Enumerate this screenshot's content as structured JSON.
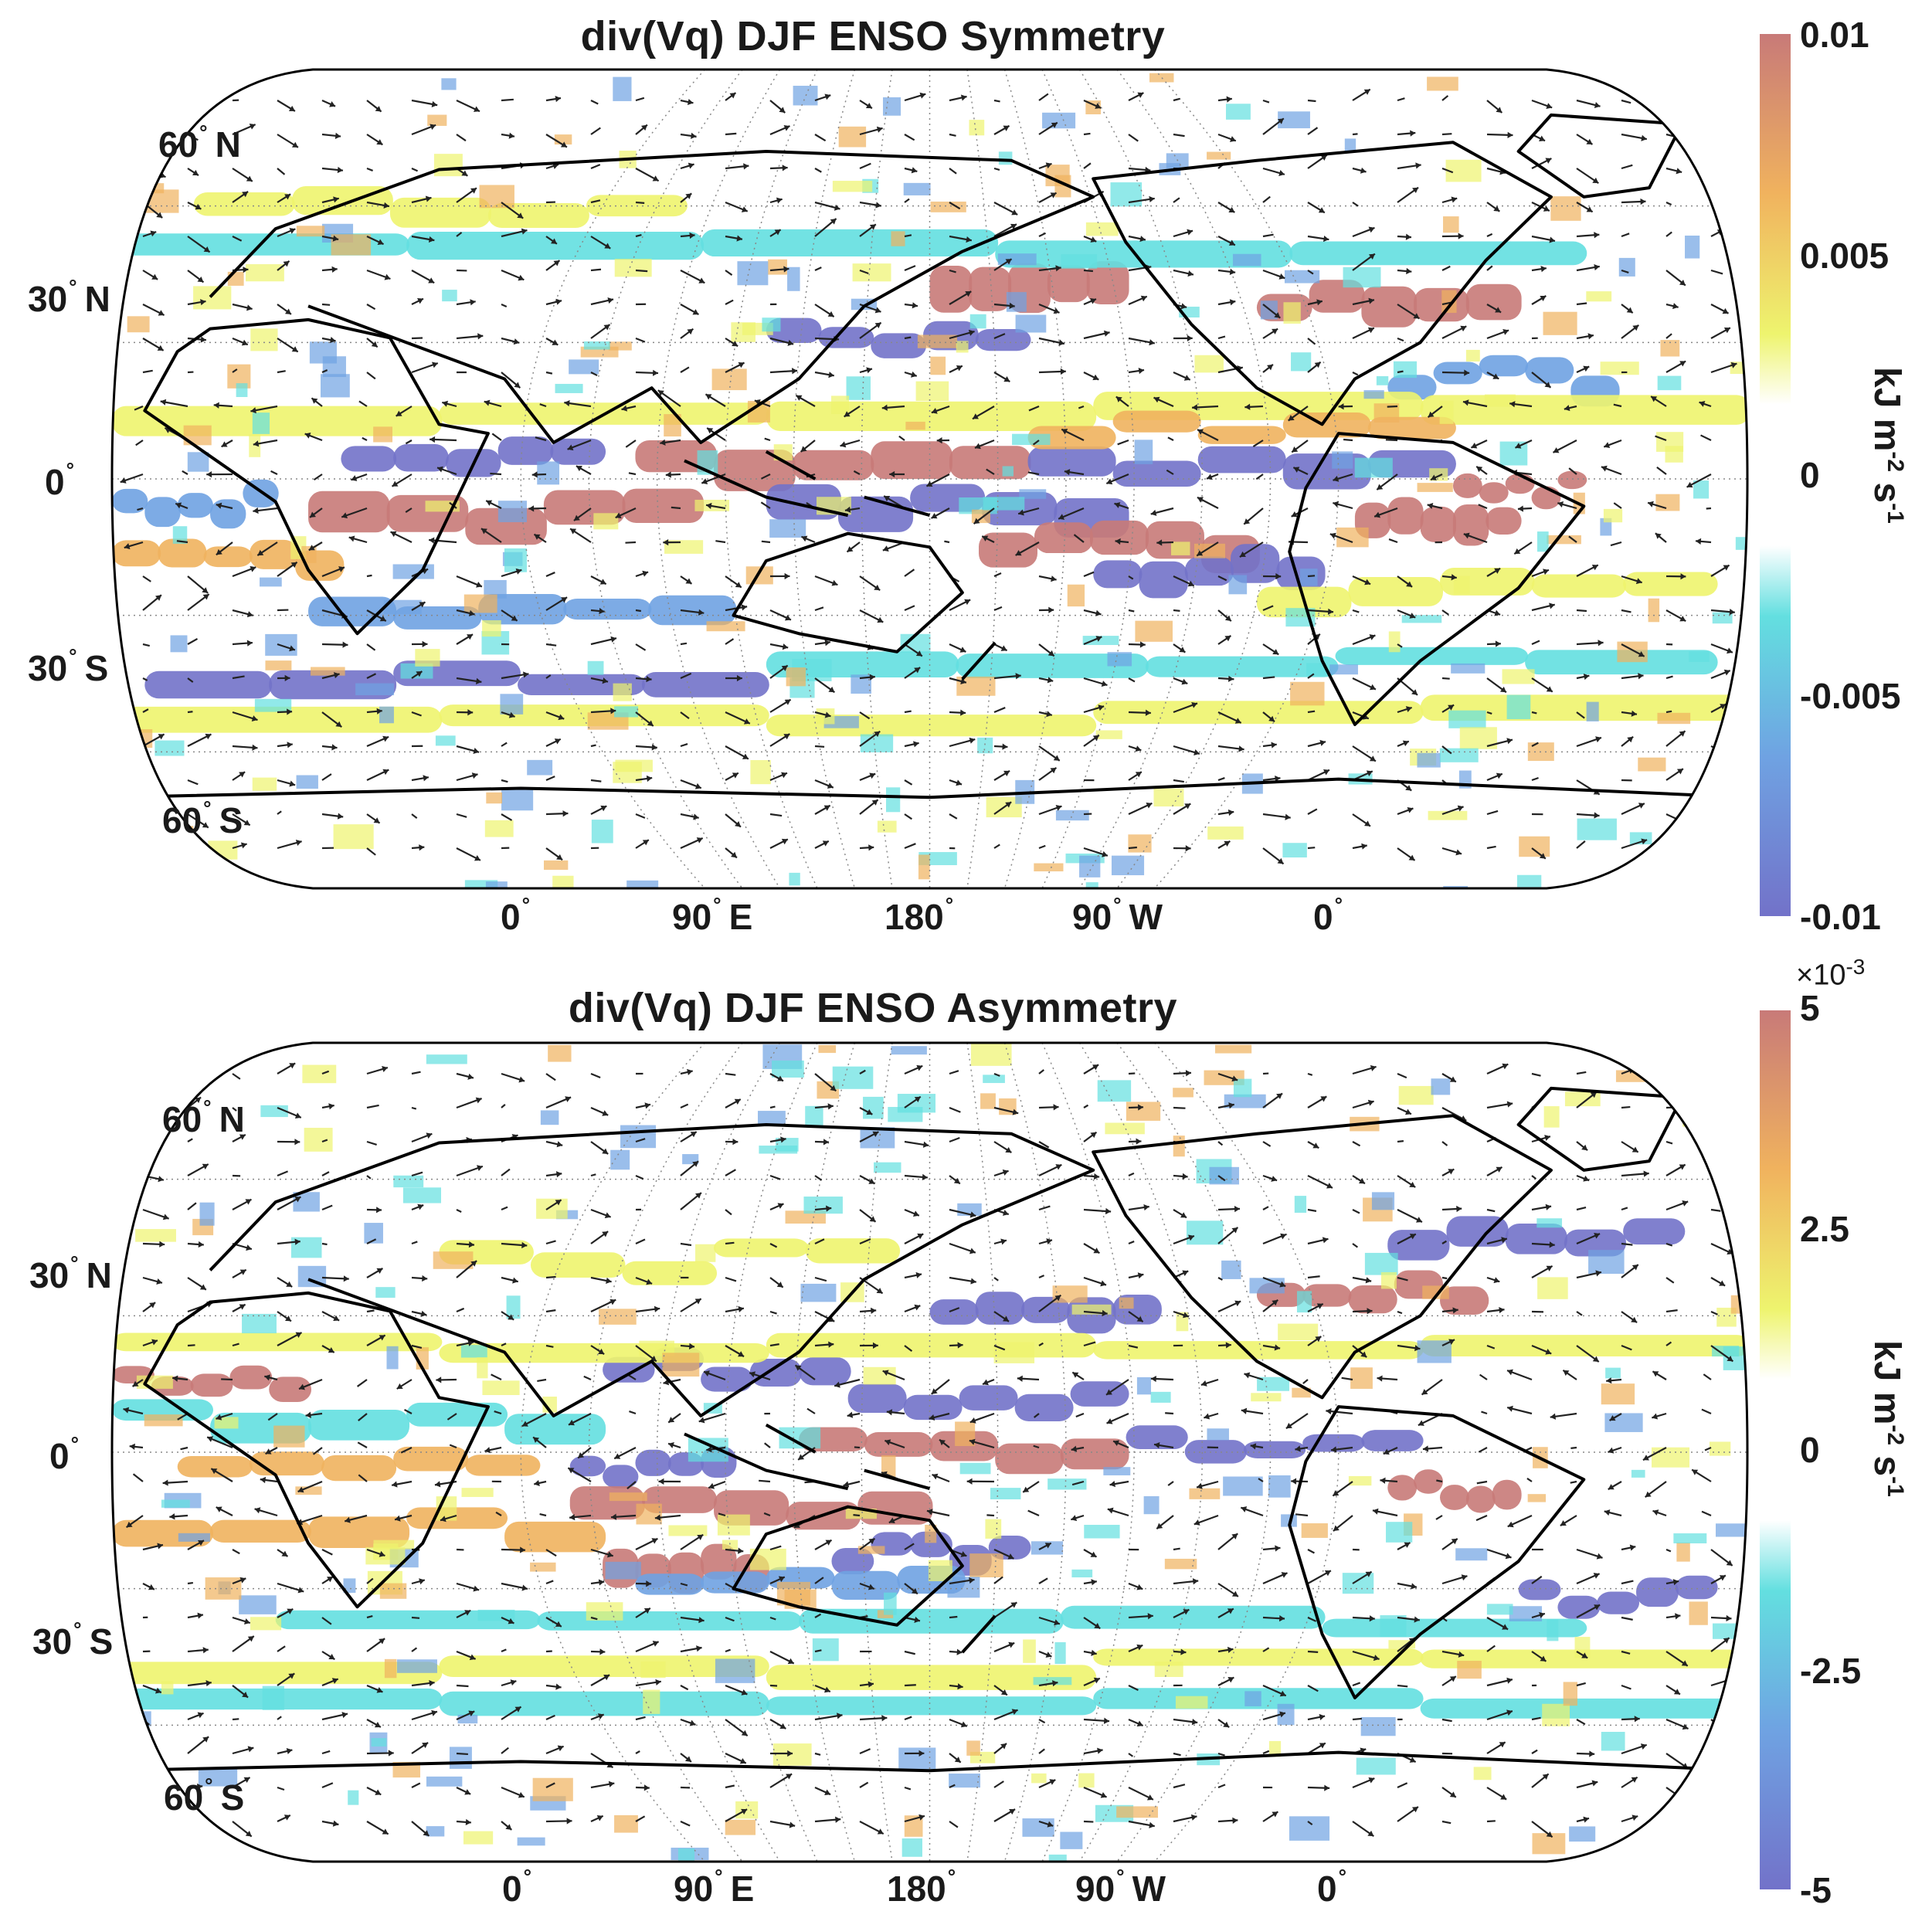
{
  "panels": [
    {
      "title": "div(Vq) DJF ENSO Symmetry",
      "lat_labels": [
        {
          "value": "60",
          "hemi": "N"
        },
        {
          "value": "30",
          "hemi": "N"
        },
        {
          "value": "0",
          "hemi": ""
        },
        {
          "value": "30",
          "hemi": "S"
        },
        {
          "value": "60",
          "hemi": "S"
        }
      ],
      "lon_labels": [
        {
          "value": "0",
          "hemi": ""
        },
        {
          "value": "90",
          "hemi": "E"
        },
        {
          "value": "180",
          "hemi": ""
        },
        {
          "value": "90",
          "hemi": "W"
        },
        {
          "value": "0",
          "hemi": ""
        }
      ],
      "colorbar": {
        "min": -0.01,
        "max": 0.01,
        "ticks": [
          "0.01",
          "0.005",
          "0",
          "-0.005",
          "-0.01"
        ],
        "multiplier": "",
        "unit": {
          "base": "kJ m",
          "exp1": "-2",
          "mid": " s",
          "exp2": "-1"
        }
      }
    },
    {
      "title": "div(Vq) DJF ENSO Asymmetry",
      "lat_labels": [
        {
          "value": "60",
          "hemi": "N"
        },
        {
          "value": "30",
          "hemi": "N"
        },
        {
          "value": "0",
          "hemi": ""
        },
        {
          "value": "30",
          "hemi": "S"
        },
        {
          "value": "60",
          "hemi": "S"
        }
      ],
      "lon_labels": [
        {
          "value": "0",
          "hemi": ""
        },
        {
          "value": "90",
          "hemi": "E"
        },
        {
          "value": "180",
          "hemi": ""
        },
        {
          "value": "90",
          "hemi": "W"
        },
        {
          "value": "0",
          "hemi": ""
        }
      ],
      "colorbar": {
        "min": -5,
        "max": 5,
        "ticks": [
          "5",
          "2.5",
          "0",
          "-2.5",
          "-5"
        ],
        "multiplier": {
          "base": "×10",
          "exp": "-3"
        },
        "unit": {
          "base": "kJ m",
          "exp1": "-2",
          "mid": " s",
          "exp2": "-1"
        }
      }
    }
  ],
  "colors": {
    "colormap": [
      "#7272c9",
      "#6fa2e2",
      "#63dfe0",
      "#ffffff",
      "#eef46e",
      "#f0b25e",
      "#c87a78"
    ],
    "coast": "#000000",
    "grid": "#888888"
  }
}
